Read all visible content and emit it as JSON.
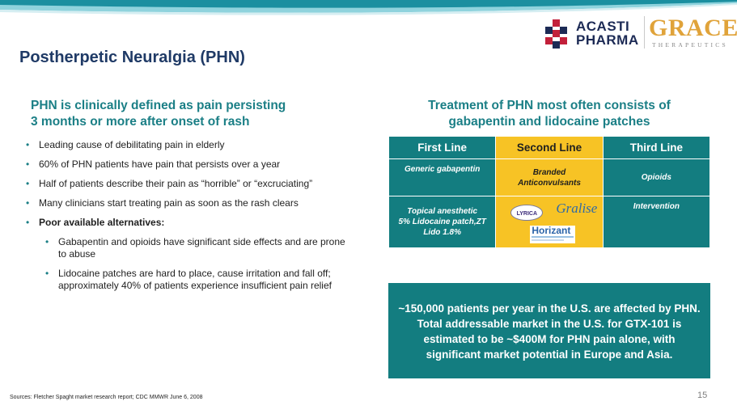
{
  "header": {
    "title": "Postherpetic Neuralgia (PHN)",
    "logos": {
      "acasti_line1": "ACASTI",
      "acasti_line2": "PHARMA",
      "grace": "GRACE",
      "grace_sub": "THERAPEUTICS"
    }
  },
  "left": {
    "heading_line1": "PHN is clinically defined as pain persisting",
    "heading_line2": "3 months or more after onset of rash",
    "bullets": [
      "Leading cause of debilitating pain in elderly",
      "60% of PHN patients have pain that persists over a year",
      "Half of patients describe their pain as “horrible” or “excruciating”",
      "Many clinicians start treating pain as soon as the rash clears",
      "Poor available alternatives:"
    ],
    "sub_bullets": [
      "Gabapentin and opioids have significant side effects and are prone to abuse",
      "Lidocaine patches are hard to place, cause irritation and fall off; approximately 40% of patients experience insufficient pain relief"
    ]
  },
  "right": {
    "heading_line1": "Treatment of PHN most often consists of",
    "heading_line2": "gabapentin and lidocaine patches",
    "table": {
      "headers": [
        "First Line",
        "Second Line",
        "Third Line"
      ],
      "row1": {
        "first": "Generic gabapentin",
        "second_line1": "Branded",
        "second_line2": "Anticonvulsants",
        "third": "Opioids"
      },
      "row2": {
        "first_line1": "Topical anesthetic",
        "first_line2": "5% Lidocaine patch,ZT",
        "first_line3": "Lido 1.8%",
        "brands": [
          "LYRICA",
          "Gralise",
          "Horizant"
        ],
        "third": "Intervention"
      }
    },
    "market_box": "~150,000 patients per year in the U.S. are affected by PHN. Total addressable market in the U.S. for GTX-101 is estimated to be ~$400M for PHN pain alone, with significant market potential in Europe and Asia."
  },
  "footer": {
    "sources": "Sources: Fletcher Spaght market research report; CDC MMWR June 6, 2008",
    "page_number": "15"
  },
  "colors": {
    "teal": "#137d80",
    "heading_teal": "#1b7f86",
    "highlight_yellow": "#f7c325",
    "title_navy": "#1f3a66",
    "grace_gold": "#e0a33a"
  }
}
